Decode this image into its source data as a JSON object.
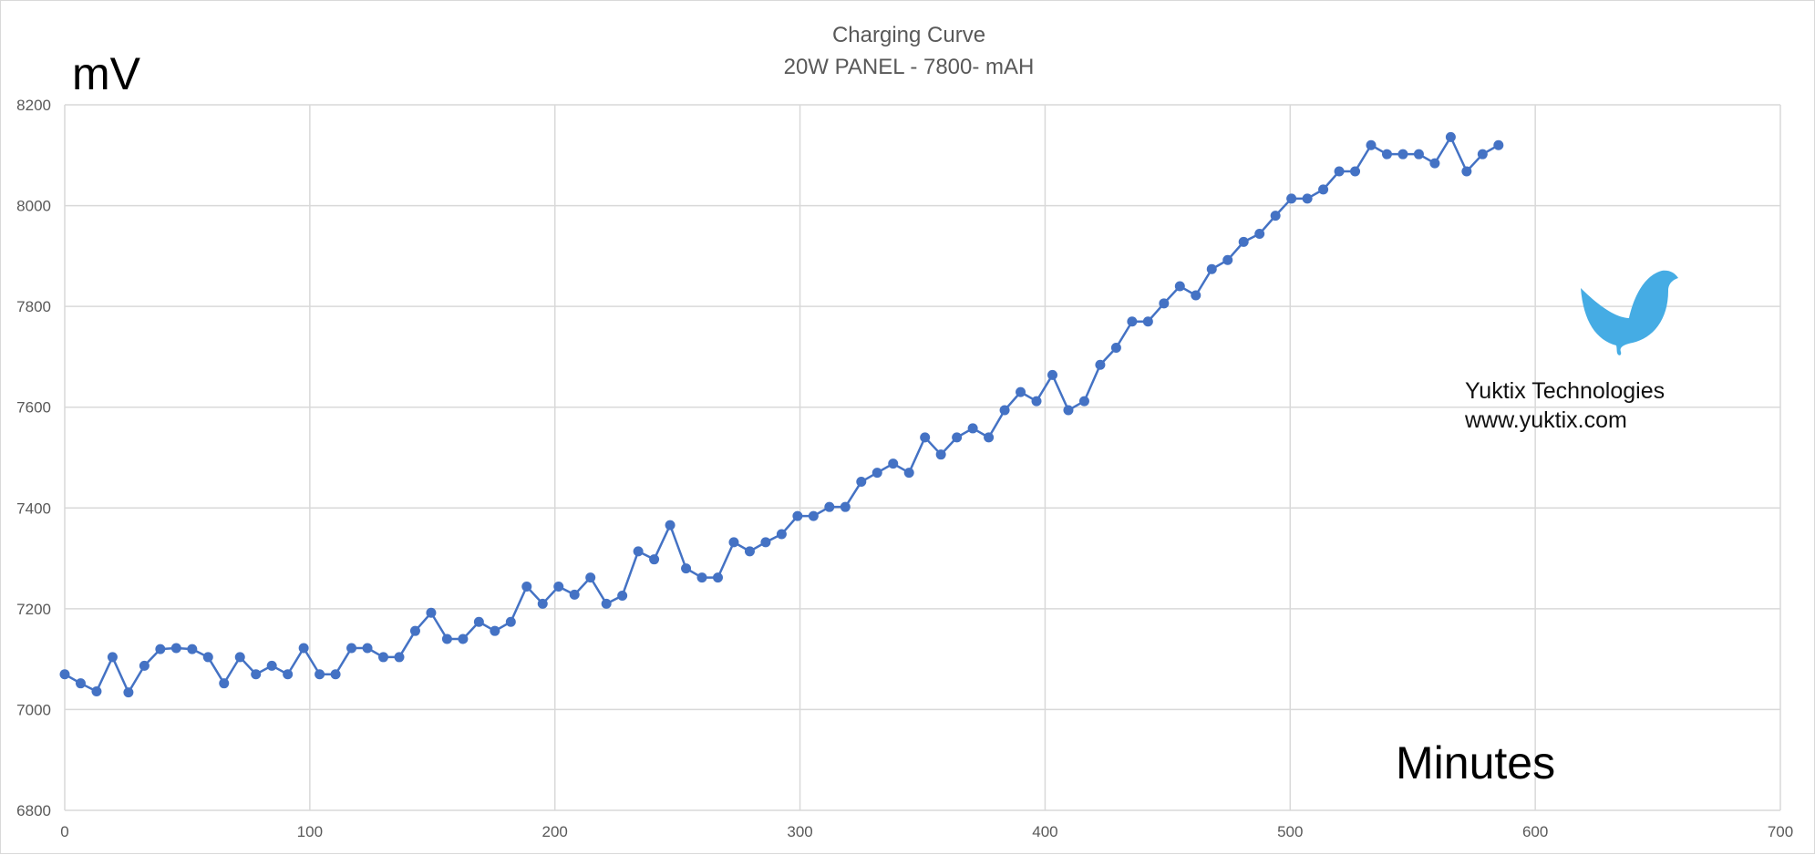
{
  "chart_data": {
    "type": "line",
    "title": "Charging Curve",
    "subtitle": "20W PANEL - 7800- mAH",
    "ylabel": "mV",
    "xlabel": "Minutes",
    "xlim": [
      0,
      700
    ],
    "ylim": [
      6800,
      8200
    ],
    "x_ticks": [
      0,
      100,
      200,
      300,
      400,
      500,
      600,
      700
    ],
    "y_ticks": [
      6800,
      7000,
      7200,
      7400,
      7600,
      7800,
      8000,
      8200
    ],
    "grid": true,
    "line_color": "#4472c4",
    "series": [
      {
        "x": [
          0,
          6.5,
          13,
          19.5,
          26,
          32.5,
          39,
          45.5,
          52,
          58.5,
          65,
          71.5,
          78,
          84.5,
          91,
          97.5,
          104,
          110.5,
          117,
          123.5,
          130,
          136.5,
          143,
          149.5,
          156,
          162.5,
          169,
          175.5,
          182,
          188.5,
          195,
          201.5,
          208,
          214.5,
          221,
          227.5,
          234,
          240.5,
          247,
          253.5,
          260,
          266.5,
          273,
          279.5,
          286,
          292.5,
          299,
          305.5,
          312,
          318.5,
          325,
          331.5,
          338,
          344.5,
          351,
          357.5,
          364,
          370.5,
          377,
          383.5,
          390,
          396.5,
          403,
          409.5,
          416,
          422.5,
          429,
          435.5,
          442,
          448.5,
          455,
          461.5,
          468,
          474.5,
          481,
          487.5,
          494,
          500.5,
          507,
          513.5,
          520,
          526.5,
          533,
          539.5,
          546,
          552.5,
          559,
          565.5,
          572,
          578.5,
          585
        ],
        "values": [
          7070,
          7052,
          7036,
          7104,
          7034,
          7087,
          7120,
          7122,
          7120,
          7104,
          7052,
          7104,
          7070,
          7087,
          7070,
          7122,
          7070,
          7070,
          7122,
          7122,
          7104,
          7104,
          7156,
          7192,
          7140,
          7140,
          7174,
          7156,
          7174,
          7244,
          7210,
          7244,
          7228,
          7262,
          7210,
          7226,
          7314,
          7298,
          7366,
          7280,
          7262,
          7262,
          7332,
          7314,
          7332,
          7348,
          7384,
          7384,
          7402,
          7402,
          7452,
          7470,
          7488,
          7470,
          7540,
          7506,
          7540,
          7558,
          7540,
          7594,
          7630,
          7612,
          7664,
          7594,
          7612,
          7684,
          7718,
          7770,
          7770,
          7806,
          7840,
          7822,
          7874,
          7892,
          7928,
          7944,
          7980,
          8014,
          8014,
          8032,
          8068,
          8068,
          8120,
          8102,
          8102,
          8102,
          8084,
          8136,
          8068,
          8102,
          8120
        ]
      }
    ]
  },
  "watermark": {
    "company": "Yuktix Technologies",
    "url": "www.yuktix.com",
    "logo_icon": "bird-icon",
    "logo_color": "#45ace4"
  }
}
